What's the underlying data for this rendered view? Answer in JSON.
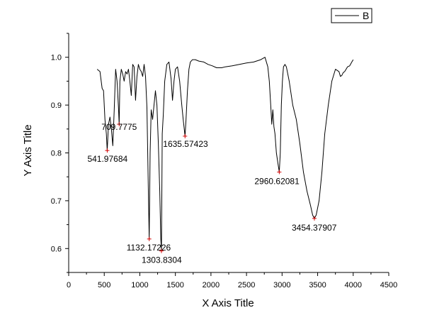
{
  "chart_data": {
    "type": "line",
    "title": "",
    "xlabel": "X Axis Title",
    "ylabel": "Y Axis Title",
    "xlim": [
      0,
      4500
    ],
    "ylim": [
      0.55,
      1.05
    ],
    "x_ticks": [
      0,
      500,
      1000,
      1500,
      2000,
      2500,
      3000,
      3500,
      4000,
      4500
    ],
    "y_ticks": [
      0.6,
      0.7,
      0.8,
      0.9,
      1.0
    ],
    "x_tick_labels": [
      "0",
      "500",
      "1000",
      "1500",
      "2000",
      "2500",
      "3000",
      "3500",
      "4000",
      "4500"
    ],
    "y_tick_labels": [
      "0.6",
      "0.7",
      "0.8",
      "0.9",
      "1.0"
    ],
    "grid": false,
    "legend": {
      "position": "top-right",
      "entries": [
        "B"
      ]
    },
    "series": [
      {
        "name": "B",
        "color": "#000000",
        "x": [
          400,
          440,
          470,
          490,
          510,
          530,
          542,
          560,
          580,
          600,
          620,
          640,
          660,
          680,
          700,
          710,
          720,
          740,
          760,
          780,
          800,
          820,
          840,
          860,
          880,
          900,
          920,
          940,
          960,
          980,
          1000,
          1020,
          1040,
          1060,
          1080,
          1100,
          1120,
          1132,
          1145,
          1160,
          1180,
          1200,
          1220,
          1240,
          1260,
          1280,
          1295,
          1304,
          1315,
          1330,
          1350,
          1380,
          1410,
          1440,
          1460,
          1480,
          1500,
          1530,
          1560,
          1590,
          1610,
          1636,
          1650,
          1670,
          1690,
          1710,
          1740,
          1780,
          1830,
          1900,
          1960,
          2020,
          2080,
          2150,
          2200,
          2300,
          2400,
          2500,
          2600,
          2700,
          2760,
          2800,
          2820,
          2840,
          2855,
          2870,
          2885,
          2900,
          2920,
          2940,
          2961,
          2975,
          2990,
          3005,
          3020,
          3040,
          3060,
          3100,
          3150,
          3200,
          3250,
          3300,
          3350,
          3400,
          3430,
          3454,
          3480,
          3520,
          3560,
          3600,
          3650,
          3700,
          3750,
          3800,
          3820,
          3840,
          3860,
          3880,
          3900,
          3920,
          3950,
          3980,
          4000
        ],
        "y": [
          0.975,
          0.97,
          0.935,
          0.93,
          0.87,
          0.84,
          0.805,
          0.86,
          0.875,
          0.85,
          0.815,
          0.89,
          0.975,
          0.95,
          0.895,
          0.86,
          0.95,
          0.975,
          0.965,
          0.95,
          0.97,
          0.965,
          0.975,
          0.95,
          0.92,
          0.985,
          0.98,
          0.91,
          0.96,
          0.985,
          0.975,
          0.97,
          0.96,
          0.985,
          0.96,
          0.895,
          0.72,
          0.62,
          0.8,
          0.89,
          0.87,
          0.9,
          0.93,
          0.9,
          0.82,
          0.72,
          0.62,
          0.595,
          0.84,
          0.88,
          0.95,
          0.985,
          0.99,
          0.955,
          0.91,
          0.95,
          0.975,
          0.98,
          0.95,
          0.9,
          0.87,
          0.835,
          0.87,
          0.93,
          0.975,
          0.99,
          0.995,
          0.995,
          0.992,
          0.99,
          0.985,
          0.982,
          0.978,
          0.978,
          0.98,
          0.982,
          0.985,
          0.988,
          0.99,
          0.995,
          1.0,
          0.98,
          0.95,
          0.9,
          0.86,
          0.89,
          0.855,
          0.84,
          0.8,
          0.78,
          0.76,
          0.8,
          0.9,
          0.95,
          0.98,
          0.985,
          0.98,
          0.95,
          0.9,
          0.87,
          0.82,
          0.76,
          0.72,
          0.69,
          0.67,
          0.663,
          0.67,
          0.7,
          0.76,
          0.84,
          0.9,
          0.95,
          0.975,
          0.97,
          0.96,
          0.962,
          0.968,
          0.97,
          0.975,
          0.98,
          0.982,
          0.99,
          0.995
        ]
      }
    ],
    "annotations": [
      {
        "x": 541.97684,
        "y": 0.805,
        "text": "541.97684"
      },
      {
        "x": 709.7775,
        "y": 0.86,
        "text": "709.7775"
      },
      {
        "x": 1132.17226,
        "y": 0.62,
        "text": "1132.17226"
      },
      {
        "x": 1303.8304,
        "y": 0.595,
        "text": "1303.8304"
      },
      {
        "x": 1635.57423,
        "y": 0.835,
        "text": "1635.57423"
      },
      {
        "x": 2960.62081,
        "y": 0.76,
        "text": "2960.62081"
      },
      {
        "x": 3454.37907,
        "y": 0.663,
        "text": "3454.37907"
      }
    ],
    "marker_color": "#d40000"
  }
}
